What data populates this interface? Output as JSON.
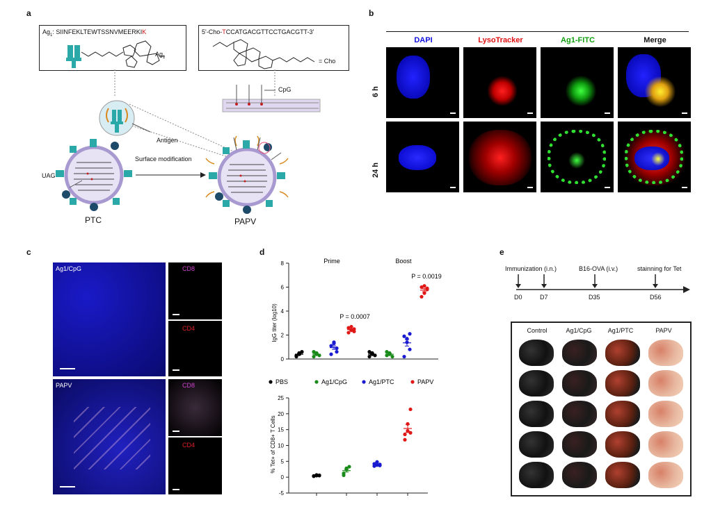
{
  "panel_labels": {
    "a": "a",
    "b": "b",
    "c": "c",
    "d": "d",
    "e": "e"
  },
  "panel_a": {
    "ag1_sequence_prefix": "Ag",
    "ag1_sequence_sub": "1",
    "ag1_sequence_main": ": SIINFEKLTEWTSSNVMEERKI",
    "ag1_sequence_highlight": "K",
    "ag1_label": "Ag",
    "ag1_label_sub": "1",
    "cpg_sequence_a": "5'-Cho-",
    "cpg_sequence_red": "T",
    "cpg_sequence_b": "CCATGACGTTCCTGACGTT-3'",
    "cho_label": "= Cho",
    "cpg_label": "CpG",
    "antigen_label": "Antigen",
    "uag_label": "UAG",
    "surface_mod_label": "Surface modification",
    "ptc_label": "PTC",
    "papv_label": "PAPV"
  },
  "panel_b": {
    "columns": [
      "DAPI",
      "LysoTracker",
      "Ag1-FITC",
      "Merge"
    ],
    "column_colors": [
      "#1010e0",
      "#e01010",
      "#10a010",
      "#000000"
    ],
    "rows": [
      "6 h",
      "24 h"
    ]
  },
  "panel_c": {
    "top_label": "Ag1/CpG",
    "bottom_label": "PAPV",
    "cd8_label": "CD8",
    "cd4_label": "CD4",
    "cd8_color": "#d040d0",
    "cd4_color": "#e02020"
  },
  "panel_d": {
    "top_ylabel": "IgG titer (log10)",
    "prime_label": "Prime",
    "boost_label": "Boost",
    "p_prime": "P = 0.0007",
    "p_boost": "P = 0.0019",
    "legend": [
      {
        "name": "PBS",
        "color": "#000000"
      },
      {
        "name": "Ag1/CpG",
        "color": "#1a8a1a"
      },
      {
        "name": "Ag1/PTC",
        "color": "#1a1ad0"
      },
      {
        "name": "PAPV",
        "color": "#e01818"
      }
    ],
    "bottom_ylabel": "% Tet+ of CD8+ T Cells"
  },
  "panel_e": {
    "timeline_labels": [
      "Immunization (i.n.)",
      "B16-OVA (i.v.)",
      "stainning for Tet"
    ],
    "days": [
      "D0",
      "D7",
      "D35",
      "D56"
    ],
    "groups": [
      "Control",
      "Ag1/CpG",
      "Ag1/PTC",
      "PAPV"
    ]
  },
  "chart_data": [
    {
      "type": "scatter",
      "title": "",
      "ylabel": "IgG titer (log10)",
      "ylim": [
        0,
        8
      ],
      "yticks": [
        0,
        2,
        4,
        6,
        8
      ],
      "groups": [
        "Prime",
        "Boost"
      ],
      "series": [
        {
          "name": "PBS",
          "prime": [
            0.2,
            0.4,
            0.6,
            0.3,
            0.5
          ],
          "boost": [
            0.2,
            0.5,
            0.3,
            0.6,
            0.4
          ]
        },
        {
          "name": "Ag1/CpG",
          "prime": [
            0.2,
            0.5,
            0.3,
            0.6,
            0.4
          ],
          "boost": [
            0.3,
            0.5,
            0.2,
            0.6,
            0.4
          ]
        },
        {
          "name": "Ag1/PTC",
          "prime": [
            0.4,
            1.4,
            0.9,
            1.1,
            1.3,
            0.6
          ],
          "boost": [
            0.2,
            1.7,
            2.1,
            1.9,
            1.4,
            0.8
          ]
        },
        {
          "name": "PAPV",
          "prime": [
            2.2,
            2.7,
            2.3,
            2.6,
            2.4,
            2.5
          ],
          "boost": [
            5.2,
            6.1,
            5.8,
            6.0,
            5.5,
            5.9
          ]
        }
      ],
      "annotations": [
        "P = 0.0007",
        "P = 0.0019"
      ]
    },
    {
      "type": "scatter",
      "title": "",
      "ylabel": "% Tet+ of CD8+ T Cells",
      "ylim": [
        -5,
        25
      ],
      "yticks": [
        -5,
        0,
        5,
        10,
        15,
        20,
        25
      ],
      "series": [
        {
          "name": "PBS",
          "values": [
            0.3,
            0.5,
            0.6,
            0.4,
            0.7,
            0.5
          ]
        },
        {
          "name": "Ag1/CpG",
          "values": [
            0.6,
            2.8,
            3.3,
            1.2,
            2.4
          ]
        },
        {
          "name": "Ag1/PTC",
          "values": [
            3.5,
            4.8,
            3.7,
            4.2,
            3.8,
            4.0
          ]
        },
        {
          "name": "PAPV",
          "values": [
            11.8,
            16.8,
            21.4,
            13.5,
            14.6,
            14.0
          ]
        }
      ]
    }
  ]
}
